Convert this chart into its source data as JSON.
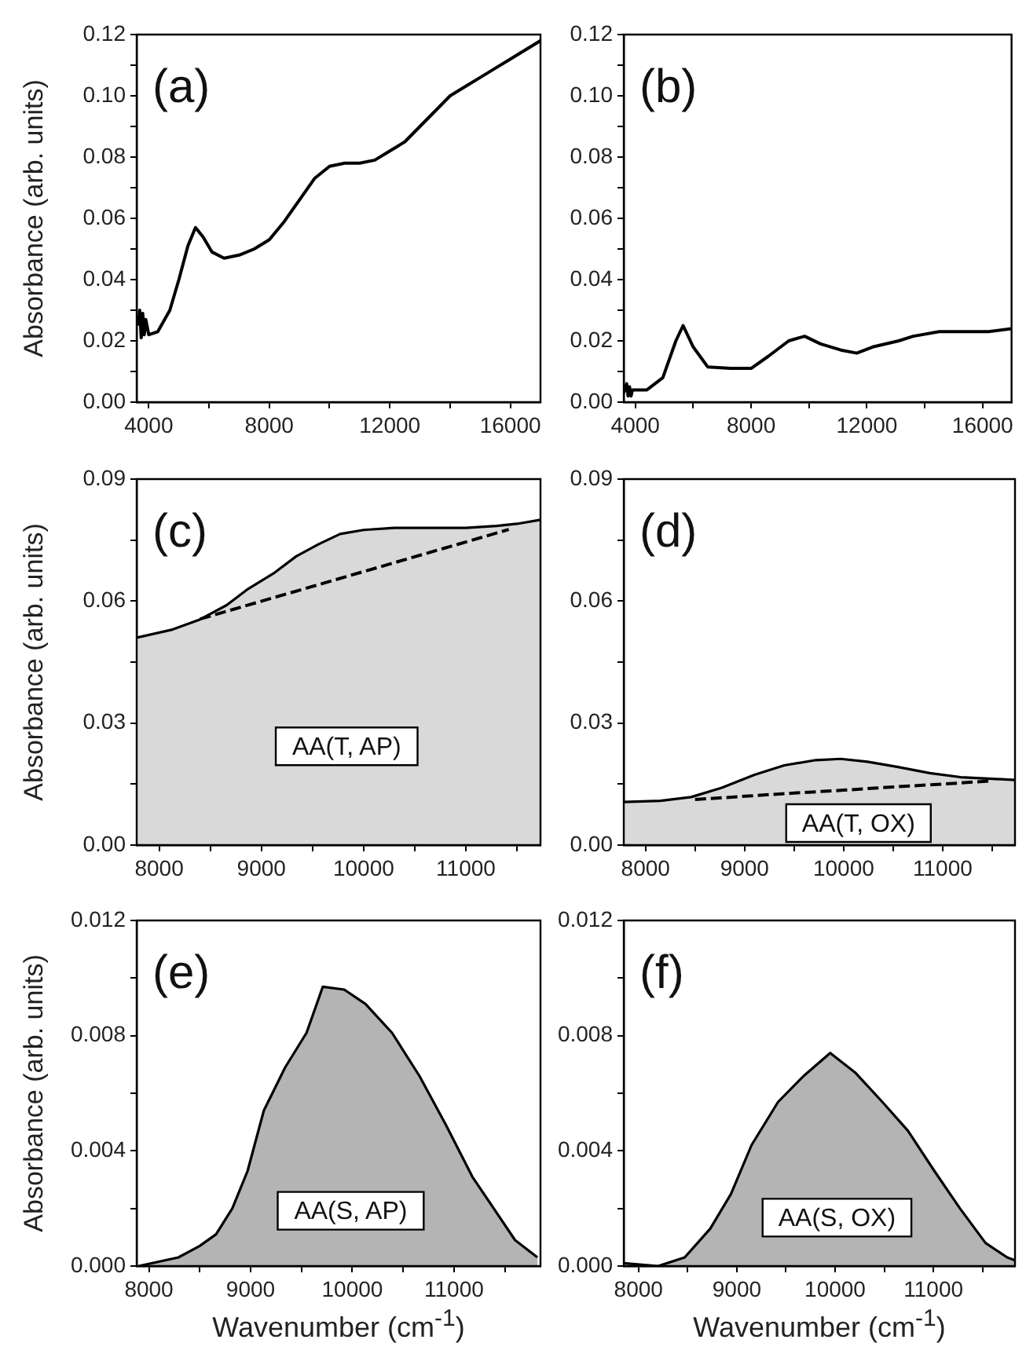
{
  "chart_data": [
    {
      "type": "line",
      "title": "(a)",
      "ylabel": "Absorbance (arb. units)",
      "x": [
        3650,
        3700,
        3750,
        3800,
        3850,
        3900,
        4000,
        4300,
        4700,
        5000,
        5300,
        5550,
        5800,
        6100,
        6500,
        7000,
        7500,
        8000,
        8500,
        9000,
        9500,
        10000,
        10500,
        11000,
        11500,
        12000,
        12500,
        13000,
        13500,
        14000,
        14500,
        15000,
        15500,
        16000,
        16500,
        17000
      ],
      "values": [
        0.025,
        0.03,
        0.021,
        0.029,
        0.022,
        0.027,
        0.022,
        0.023,
        0.03,
        0.04,
        0.051,
        0.057,
        0.054,
        0.049,
        0.047,
        0.048,
        0.05,
        0.053,
        0.059,
        0.066,
        0.073,
        0.077,
        0.078,
        0.078,
        0.079,
        0.082,
        0.085,
        0.09,
        0.095,
        0.1,
        0.103,
        0.106,
        0.109,
        0.112,
        0.115,
        0.118
      ],
      "color": "#000000",
      "xlim": [
        3600,
        17000
      ],
      "xticks": [
        4000,
        {
          "value": 6000,
          "label": null
        },
        8000,
        {
          "value": 10000,
          "label": null
        },
        12000,
        {
          "value": 14000,
          "label": null
        },
        16000
      ],
      "ylim": [
        0,
        0.12
      ],
      "yticks": [
        {
          "value": 0,
          "label": "0.00"
        },
        {
          "value": 0.01,
          "label": null
        },
        0.02,
        {
          "value": 0.03,
          "label": null
        },
        0.04,
        {
          "value": 0.05,
          "label": null
        },
        0.06,
        {
          "value": 0.07,
          "label": null
        },
        0.08,
        {
          "value": 0.09,
          "label": null
        },
        {
          "value": 0.1,
          "label": "0.10"
        },
        {
          "value": 0.11,
          "label": null
        },
        0.12
      ]
    },
    {
      "type": "line",
      "title": "(b)",
      "x": [
        3600,
        3700,
        3750,
        3800,
        3850,
        3900,
        4400,
        4950,
        5400,
        5650,
        6000,
        6500,
        7300,
        8000,
        8600,
        9300,
        9850,
        10400,
        11100,
        11650,
        12200,
        13100,
        13600,
        14500,
        16200,
        17000
      ],
      "values": [
        0.003,
        0.006,
        0.002,
        0.005,
        0.002,
        0.004,
        0.004,
        0.008,
        0.02,
        0.025,
        0.018,
        0.0115,
        0.011,
        0.011,
        0.015,
        0.02,
        0.0215,
        0.019,
        0.017,
        0.016,
        0.018,
        0.02,
        0.0215,
        0.023,
        0.023,
        0.024
      ],
      "color": "#000000",
      "xlim": [
        3600,
        17000
      ],
      "xticks": [
        4000,
        {
          "value": 6000,
          "label": null
        },
        8000,
        {
          "value": 10000,
          "label": null
        },
        12000,
        {
          "value": 14000,
          "label": null
        },
        16000
      ],
      "ylim": [
        0,
        0.12
      ],
      "yticks": [
        {
          "value": 0,
          "label": "0.00"
        },
        {
          "value": 0.01,
          "label": null
        },
        0.02,
        {
          "value": 0.03,
          "label": null
        },
        0.04,
        {
          "value": 0.05,
          "label": null
        },
        0.06,
        {
          "value": 0.07,
          "label": null
        },
        0.08,
        {
          "value": 0.09,
          "label": null
        },
        {
          "value": 0.1,
          "label": "0.10"
        },
        {
          "value": 0.11,
          "label": null
        },
        0.12
      ]
    },
    {
      "type": "area",
      "title": "(c)",
      "ylabel": "Absorbance (arb. units)",
      "annotations": [
        "AA(T, AP)"
      ],
      "series": [
        {
          "color": "#d9d9d9",
          "x": [
            7780,
            8130,
            8400,
            8660,
            8870,
            9130,
            9340,
            9560,
            9770,
            10000,
            10300,
            10600,
            11000,
            11300,
            11500,
            11730
          ],
          "values": [
            0.051,
            0.053,
            0.0555,
            0.059,
            0.063,
            0.067,
            0.071,
            0.074,
            0.0765,
            0.0775,
            0.078,
            0.078,
            0.078,
            0.0785,
            0.079,
            0.08
          ]
        },
        {
          "type": "line",
          "line_style": "dashed",
          "color": "#000000",
          "x": [
            8400,
            11420
          ],
          "values": [
            0.0556,
            0.0776
          ]
        }
      ],
      "xlim": [
        7780,
        11730
      ],
      "xticks": [
        8000,
        {
          "value": 8500,
          "label": null
        },
        9000,
        {
          "value": 9500,
          "label": null
        },
        10000,
        {
          "value": 10500,
          "label": null
        },
        11000,
        {
          "value": 11500,
          "label": null
        }
      ],
      "ylim": [
        0,
        0.09
      ],
      "yticks": [
        {
          "value": 0,
          "label": "0.00"
        },
        {
          "value": 0.015,
          "label": null
        },
        0.03,
        {
          "value": 0.045,
          "label": null
        },
        0.06,
        {
          "value": 0.075,
          "label": null
        },
        0.09
      ]
    },
    {
      "type": "area",
      "title": "(d)",
      "annotations": [
        "AA(T, OX)"
      ],
      "series": [
        {
          "color": "#d9d9d9",
          "x": [
            7780,
            8150,
            8460,
            8770,
            9100,
            9400,
            9720,
            9970,
            10240,
            10550,
            10870,
            11180,
            11500,
            11730
          ],
          "values": [
            0.0106,
            0.0109,
            0.0118,
            0.0141,
            0.0173,
            0.0196,
            0.0209,
            0.0212,
            0.0205,
            0.0192,
            0.0177,
            0.0167,
            0.0163,
            0.016
          ]
        },
        {
          "type": "line",
          "line_style": "dashed",
          "color": "#000000",
          "x": [
            8500,
            9000,
            9500,
            10000,
            10500,
            11000,
            11500
          ],
          "values": [
            0.0112,
            0.012,
            0.0128,
            0.0135,
            0.0143,
            0.015,
            0.0158
          ]
        }
      ],
      "xlim": [
        7780,
        11730
      ],
      "xticks": [
        8000,
        {
          "value": 8500,
          "label": null
        },
        9000,
        {
          "value": 9500,
          "label": null
        },
        10000,
        {
          "value": 10500,
          "label": null
        },
        11000,
        {
          "value": 11500,
          "label": null
        }
      ],
      "ylim": [
        0,
        0.09
      ],
      "yticks": [
        {
          "value": 0,
          "label": "0.00"
        },
        {
          "value": 0.015,
          "label": null
        },
        0.03,
        {
          "value": 0.045,
          "label": null
        },
        0.06,
        {
          "value": 0.075,
          "label": null
        },
        0.09
      ]
    },
    {
      "type": "area",
      "title": "(e)",
      "ylabel": "Absorbance (arb. units)",
      "xlabel": "Wavenumber (cm$^{-1}$)",
      "annotations": [
        "AA(S, AP)"
      ],
      "color": "#b4b4b4",
      "x": [
        7900,
        8290,
        8500,
        8660,
        8820,
        8970,
        9130,
        9340,
        9550,
        9710,
        9920,
        10130,
        10390,
        10660,
        10920,
        11180,
        11390,
        11600,
        11820
      ],
      "values": [
        0,
        0.0003,
        0.0007,
        0.0011,
        0.002,
        0.0033,
        0.0054,
        0.0069,
        0.0081,
        0.0097,
        0.0096,
        0.0091,
        0.0081,
        0.0066,
        0.0049,
        0.0031,
        0.002,
        0.0009,
        0.0003
      ],
      "xlim": [
        7880,
        11850
      ],
      "xticks": [
        8000,
        {
          "value": 8500,
          "label": null
        },
        9000,
        {
          "value": 9500,
          "label": null
        },
        10000,
        {
          "value": 10500,
          "label": null
        },
        11000,
        {
          "value": 11500,
          "label": null
        }
      ],
      "ylim": [
        0,
        0.012
      ],
      "yticks": [
        {
          "value": 0,
          "label": "0.000"
        },
        {
          "value": 0.002,
          "label": null
        },
        0.004,
        {
          "value": 0.006,
          "label": null
        },
        0.008,
        {
          "value": 0.01,
          "label": null
        },
        0.012
      ]
    },
    {
      "type": "area",
      "title": "(f)",
      "xlabel": "Wavenumber (cm$^{-1}$)",
      "annotations": [
        "AA(S, OX)"
      ],
      "color": "#b4b4b4",
      "x": [
        7850,
        8200,
        8470,
        8730,
        8940,
        9150,
        9420,
        9680,
        9950,
        10210,
        10480,
        10740,
        11010,
        11270,
        11530,
        11750,
        11830
      ],
      "values": [
        0.0001,
        0,
        0.0003,
        0.0013,
        0.0025,
        0.0042,
        0.0057,
        0.0066,
        0.0074,
        0.0067,
        0.0057,
        0.0047,
        0.0033,
        0.002,
        0.0008,
        0.0003,
        0.0002
      ],
      "xlim": [
        7850,
        11830
      ],
      "xticks": [
        8000,
        {
          "value": 8500,
          "label": null
        },
        9000,
        {
          "value": 9500,
          "label": null
        },
        10000,
        {
          "value": 10500,
          "label": null
        },
        11000,
        {
          "value": 11500,
          "label": null
        }
      ],
      "ylim": [
        0,
        0.012
      ],
      "yticks": [
        {
          "value": 0,
          "label": "0.000"
        },
        {
          "value": 0.002,
          "label": null
        },
        0.004,
        {
          "value": 0.006,
          "label": null
        },
        0.008,
        {
          "value": 0.01,
          "label": null
        },
        0.012
      ]
    }
  ]
}
